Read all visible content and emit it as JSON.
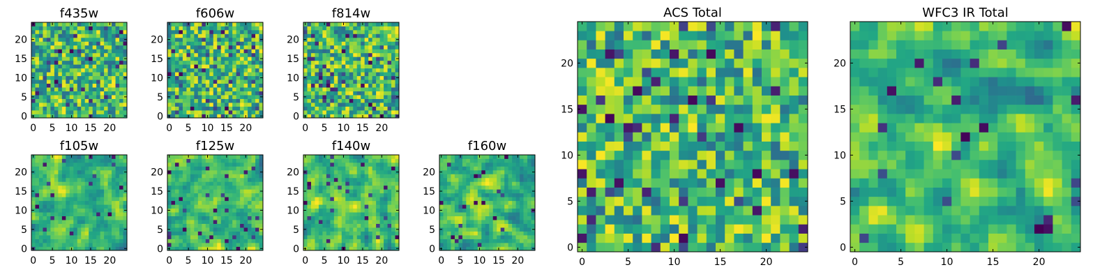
{
  "chart_data": [
    {
      "id": "f435w",
      "type": "heatmap",
      "title": "f435w",
      "grid_size": 25,
      "xticks": [
        "0",
        "5",
        "10",
        "15",
        "20"
      ],
      "yticks": [
        "0",
        "5",
        "10",
        "15",
        "20"
      ],
      "colormap": "viridis",
      "seed": 11,
      "smooth": 0,
      "low_rate": 0.06
    },
    {
      "id": "f606w",
      "type": "heatmap",
      "title": "f606w",
      "grid_size": 25,
      "xticks": [
        "0",
        "5",
        "10",
        "15",
        "20"
      ],
      "yticks": [
        "0",
        "5",
        "10",
        "15",
        "20"
      ],
      "colormap": "viridis",
      "seed": 23,
      "smooth": 0,
      "low_rate": 0.06
    },
    {
      "id": "f814w",
      "type": "heatmap",
      "title": "f814w",
      "grid_size": 25,
      "xticks": [
        "0",
        "5",
        "10",
        "15",
        "20"
      ],
      "yticks": [
        "0",
        "5",
        "10",
        "15",
        "20"
      ],
      "colormap": "viridis",
      "seed": 37,
      "smooth": 0,
      "low_rate": 0.06
    },
    {
      "id": "f105w",
      "type": "heatmap",
      "title": "f105w",
      "grid_size": 25,
      "xticks": [
        "0",
        "5",
        "10",
        "15",
        "20"
      ],
      "yticks": [
        "0",
        "5",
        "10",
        "15",
        "20"
      ],
      "colormap": "viridis",
      "seed": 41,
      "smooth": 1,
      "low_rate": 0.04
    },
    {
      "id": "f125w",
      "type": "heatmap",
      "title": "f125w",
      "grid_size": 25,
      "xticks": [
        "0",
        "5",
        "10",
        "15",
        "20"
      ],
      "yticks": [
        "0",
        "5",
        "10",
        "15",
        "20"
      ],
      "colormap": "viridis",
      "seed": 53,
      "smooth": 1,
      "low_rate": 0.04
    },
    {
      "id": "f140w",
      "type": "heatmap",
      "title": "f140w",
      "grid_size": 25,
      "xticks": [
        "0",
        "5",
        "10",
        "15",
        "20"
      ],
      "yticks": [
        "0",
        "5",
        "10",
        "15",
        "20"
      ],
      "colormap": "viridis",
      "seed": 67,
      "smooth": 1,
      "low_rate": 0.04
    },
    {
      "id": "f160w",
      "type": "heatmap",
      "title": "f160w",
      "grid_size": 25,
      "xticks": [
        "0",
        "5",
        "10",
        "15",
        "20"
      ],
      "yticks": [
        "0",
        "5",
        "10",
        "15",
        "20"
      ],
      "colormap": "viridis",
      "seed": 71,
      "smooth": 1,
      "low_rate": 0.03
    },
    {
      "id": "acs-total",
      "type": "heatmap",
      "title": "ACS Total",
      "grid_size": 25,
      "xticks": [
        "0",
        "5",
        "10",
        "15",
        "20"
      ],
      "yticks": [
        "0",
        "5",
        "10",
        "15",
        "20"
      ],
      "colormap": "viridis",
      "seed": 83,
      "smooth": 0,
      "low_rate": 0.05
    },
    {
      "id": "wfc3-ir-total",
      "type": "heatmap",
      "title": "WFC3 IR Total",
      "grid_size": 25,
      "xticks": [
        "0",
        "5",
        "10",
        "15",
        "20"
      ],
      "yticks": [
        "0",
        "5",
        "10",
        "15",
        "20"
      ],
      "colormap": "viridis",
      "seed": 97,
      "smooth": 1,
      "low_rate": 0.03
    }
  ]
}
